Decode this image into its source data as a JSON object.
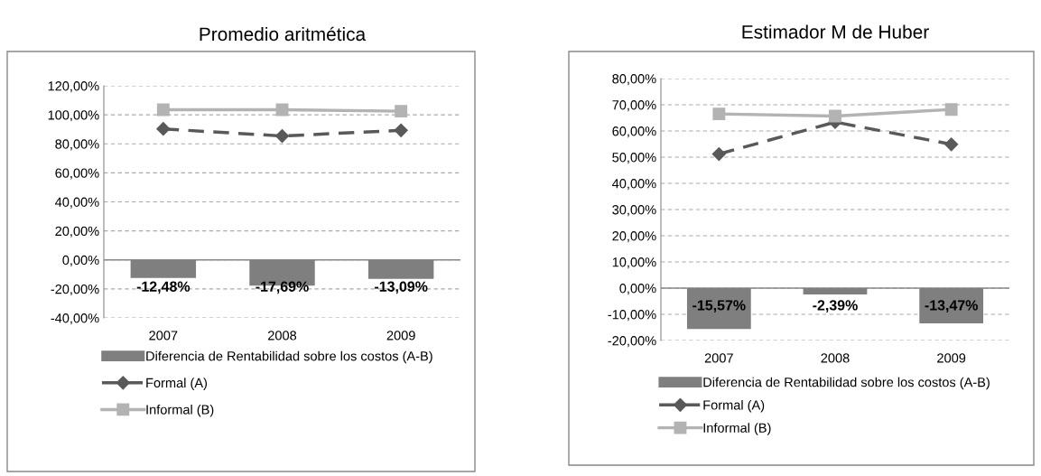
{
  "chart_data": [
    {
      "type": "bar",
      "title": "Promedio aritmética",
      "categories": [
        "2007",
        "2008",
        "2009"
      ],
      "series": [
        {
          "name": "Diferencia de Rentabilidad sobre los costos (A-B)",
          "color": "#7f7f7f",
          "values": [
            -12.48,
            -17.69,
            -13.09
          ],
          "value_labels": [
            "-12,48%",
            "-17,69%",
            "-13,09%"
          ]
        },
        {
          "name": "Formal (A)",
          "type": "line",
          "color": "#595959",
          "marker": "diamond",
          "line_style": "dashed",
          "values": [
            90.3,
            85.4,
            89.3
          ]
        },
        {
          "name": "Informal (B)",
          "type": "line",
          "color": "#b3b3b3",
          "marker": "square",
          "line_style": "solid",
          "values": [
            103.5,
            103.5,
            102.5
          ]
        }
      ],
      "ylim": [
        -40,
        120
      ],
      "yticks": [
        {
          "value": -40,
          "label": "-40,00%"
        },
        {
          "value": -20,
          "label": "-20,00%"
        },
        {
          "value": 0,
          "label": "0,00%"
        },
        {
          "value": 20,
          "label": "20,00%"
        },
        {
          "value": 40,
          "label": "40,00%"
        },
        {
          "value": 60,
          "label": "60,00%"
        },
        {
          "value": 80,
          "label": "80,00%"
        },
        {
          "value": 100,
          "label": "100,00%"
        },
        {
          "value": 120,
          "label": "120,00%"
        }
      ],
      "grid": "y",
      "legend": "bottom"
    },
    {
      "type": "bar",
      "title": "Estimador M de Huber",
      "categories": [
        "2007",
        "2008",
        "2009"
      ],
      "series": [
        {
          "name": "Diferencia de Rentabilidad sobre los costos (A-B)",
          "color": "#7f7f7f",
          "values": [
            -15.57,
            -2.39,
            -13.47
          ],
          "value_labels": [
            "-15,57%",
            "-2,39%",
            "-13,47%"
          ]
        },
        {
          "name": "Formal (A)",
          "type": "line",
          "color": "#595959",
          "marker": "diamond",
          "line_style": "dashed",
          "values": [
            51.2,
            63.4,
            54.9
          ]
        },
        {
          "name": "Informal (B)",
          "type": "line",
          "color": "#b3b3b3",
          "marker": "square",
          "line_style": "solid",
          "values": [
            66.5,
            65.7,
            68.2
          ]
        }
      ],
      "ylim": [
        -20,
        80
      ],
      "yticks": [
        {
          "value": -20,
          "label": "-20,00%"
        },
        {
          "value": -10,
          "label": "-10,00%"
        },
        {
          "value": 0,
          "label": "0,00%"
        },
        {
          "value": 10,
          "label": "10,00%"
        },
        {
          "value": 20,
          "label": "20,00%"
        },
        {
          "value": 30,
          "label": "30,00%"
        },
        {
          "value": 40,
          "label": "40,00%"
        },
        {
          "value": 50,
          "label": "50,00%"
        },
        {
          "value": 60,
          "label": "60,00%"
        },
        {
          "value": 70,
          "label": "70,00%"
        },
        {
          "value": 80,
          "label": "80,00%"
        }
      ],
      "grid": "y",
      "legend": "bottom"
    }
  ]
}
